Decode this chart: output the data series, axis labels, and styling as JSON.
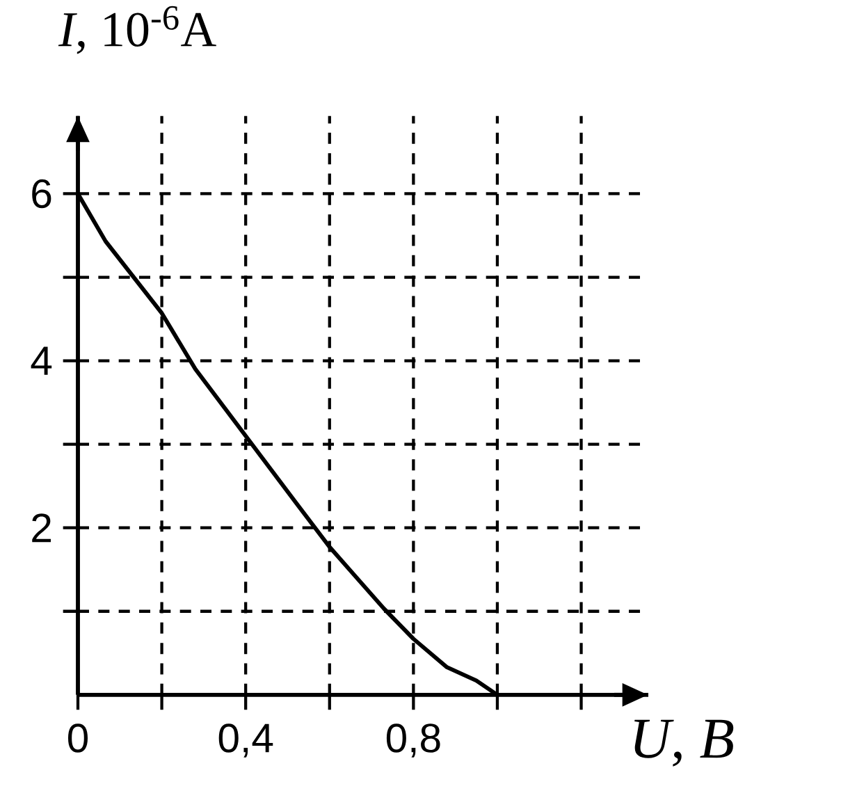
{
  "chart_data": {
    "type": "line",
    "xlabel": "*U*, *B*",
    "ylabel": "*I*, 10$^{-6}$A",
    "x": [
      0,
      0.066,
      0.2,
      0.28,
      0.4,
      0.52,
      0.6,
      0.73,
      0.8,
      0.88,
      0.95,
      1.0
    ],
    "values": [
      6,
      5.43,
      4.57,
      3.9,
      3.1,
      2.3,
      1.77,
      1.03,
      0.67,
      0.33,
      0.17,
      0
    ],
    "color": "#000000",
    "xlim": [
      0,
      1.36
    ],
    "ylim": [
      0,
      6.93
    ],
    "xticks": [
      0,
      {
        "value": 0.2,
        "label": null
      },
      {
        "value": 0.4,
        "label": "0,4"
      },
      {
        "value": 0.6,
        "label": null
      },
      {
        "value": 0.8,
        "label": "0,8"
      },
      {
        "value": 1.0,
        "label": null
      },
      {
        "value": 1.2,
        "label": null
      }
    ],
    "yticks": [
      {
        "value": 1,
        "label": null
      },
      2,
      {
        "value": 3,
        "label": null
      },
      4,
      {
        "value": 5,
        "label": null
      },
      6
    ],
    "grid": true
  }
}
